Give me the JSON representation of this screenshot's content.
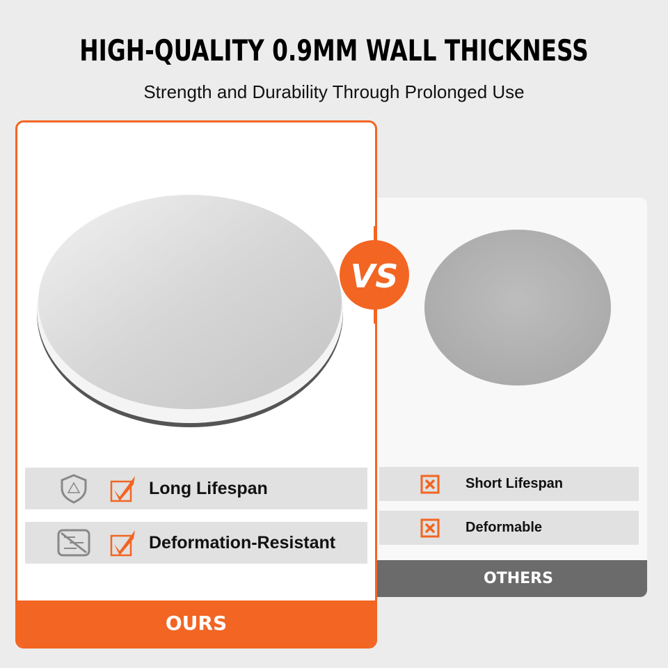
{
  "header": {
    "title": "HIGH-QUALITY 0.9MM WALL THICKNESS",
    "subtitle": "Strength and Durability Through Prolonged Use"
  },
  "vs_label": "VS",
  "ours": {
    "label": "OURS",
    "features": [
      {
        "icon": "shield-icon",
        "text": "Long Lifespan"
      },
      {
        "icon": "no-deformation-icon",
        "text": "Deformation-Resistant"
      }
    ]
  },
  "others": {
    "label": "OTHERS",
    "features": [
      {
        "icon": "x-box-icon",
        "text": "Short Lifespan"
      },
      {
        "icon": "x-box-icon",
        "text": "Deformable"
      }
    ]
  },
  "colors": {
    "accent": "#f26522",
    "dark_bar": "#6b6b6b",
    "row_bg": "#e1e1e1"
  }
}
